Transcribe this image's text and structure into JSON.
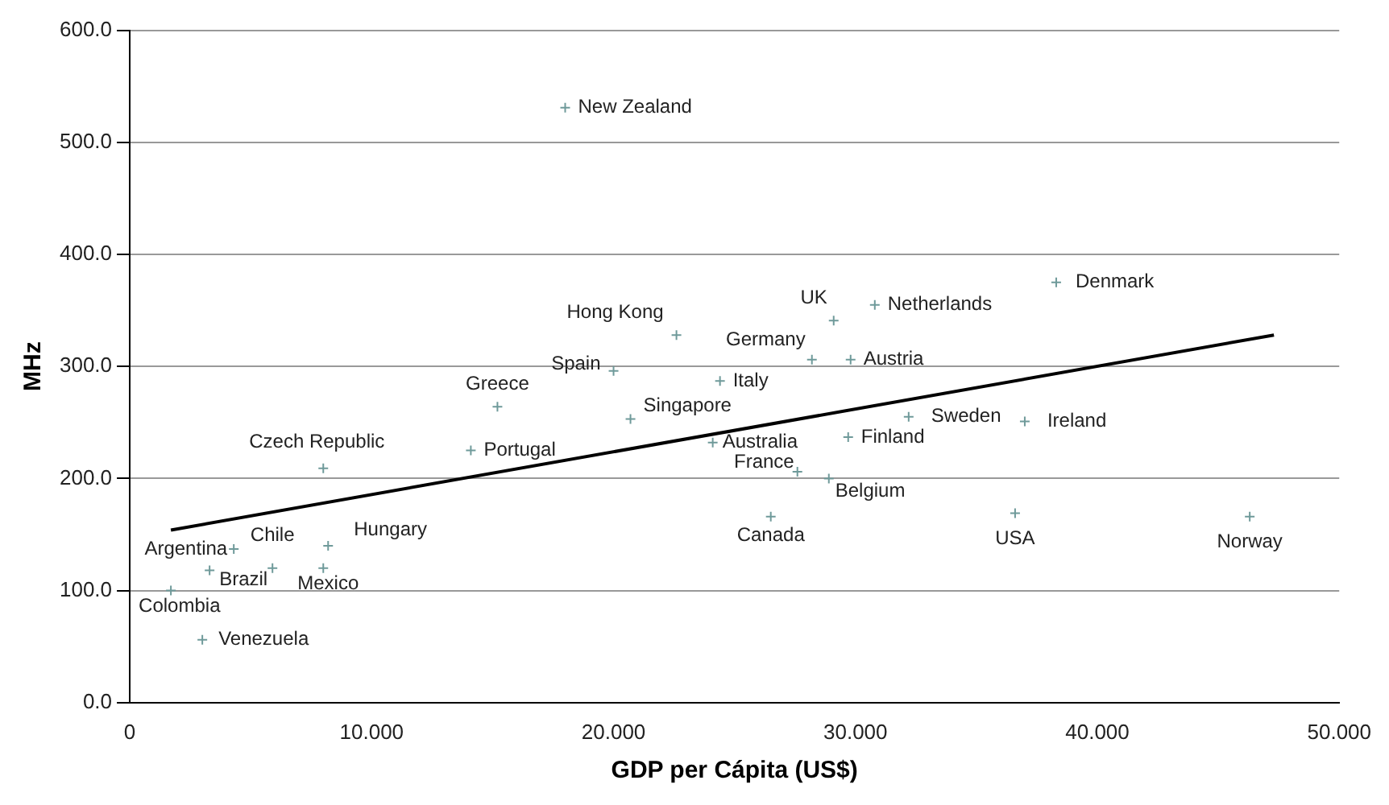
{
  "chart_data": {
    "type": "scatter",
    "xlabel": "GDP per Cápita (US$)",
    "ylabel": "MHz",
    "xlim": [
      0,
      50
    ],
    "xticks": [
      {
        "value": 0,
        "label": "0"
      },
      {
        "value": 10,
        "label": "10.000"
      },
      {
        "value": 20,
        "label": "20.000"
      },
      {
        "value": 30,
        "label": "30.000"
      },
      {
        "value": 40,
        "label": "40.000"
      },
      {
        "value": 50,
        "label": "50.000"
      }
    ],
    "ylim": [
      0,
      600
    ],
    "yticks": [
      {
        "value": 0,
        "label": "0.0"
      },
      {
        "value": 100,
        "label": "100.0"
      },
      {
        "value": 200,
        "label": "200.0"
      },
      {
        "value": 300,
        "label": "300.0"
      },
      {
        "value": 400,
        "label": "400.0"
      },
      {
        "value": 500,
        "label": "500.0"
      },
      {
        "value": 600,
        "label": "600.0"
      }
    ],
    "grid": "y",
    "marker": "cross",
    "series": [
      {
        "color": "#6f9a9a",
        "x": [
          18.0,
          22.6,
          20.0,
          15.2,
          8.0,
          14.1,
          20.7,
          24.4,
          24.1,
          28.2,
          29.1,
          29.8,
          30.8,
          38.3,
          29.7,
          32.2,
          37.0,
          27.6,
          28.9,
          26.5,
          36.6,
          46.3,
          4.3,
          5.9,
          3.3,
          8.0,
          8.2,
          1.7,
          3.0
        ],
        "values": [
          531,
          328,
          296,
          264,
          209,
          225,
          253,
          287,
          232,
          306,
          341,
          306,
          355,
          375,
          237,
          255,
          251,
          206,
          200,
          166,
          169,
          166,
          137,
          120,
          118,
          120,
          140,
          100,
          56
        ]
      },
      {
        "type": "line",
        "color": "#000000",
        "marker": "none",
        "x": [
          1.7,
          47.3
        ],
        "values": [
          154,
          328
        ]
      }
    ],
    "annotations": [
      {
        "text": "New Zealand",
        "x": 18.0,
        "y": 531
      },
      {
        "text": "Hong Kong",
        "x": 22.6,
        "y": 328
      },
      {
        "text": "Spain",
        "x": 20.0,
        "y": 296
      },
      {
        "text": "Greece",
        "x": 15.2,
        "y": 264
      },
      {
        "text": "Czech Republic",
        "x": 8.0,
        "y": 209
      },
      {
        "text": "Portugal",
        "x": 14.1,
        "y": 225
      },
      {
        "text": "Singapore",
        "x": 20.7,
        "y": 253
      },
      {
        "text": "Italy",
        "x": 24.4,
        "y": 287
      },
      {
        "text": "Australia",
        "x": 24.1,
        "y": 232
      },
      {
        "text": "Germany",
        "x": 28.2,
        "y": 306
      },
      {
        "text": "UK",
        "x": 29.1,
        "y": 341
      },
      {
        "text": "Austria",
        "x": 29.8,
        "y": 306
      },
      {
        "text": "Netherlands",
        "x": 30.8,
        "y": 355
      },
      {
        "text": "Denmark",
        "x": 38.3,
        "y": 375
      },
      {
        "text": "Finland",
        "x": 29.7,
        "y": 237
      },
      {
        "text": "Sweden",
        "x": 32.2,
        "y": 255
      },
      {
        "text": "Ireland",
        "x": 37.0,
        "y": 251
      },
      {
        "text": "France",
        "x": 27.6,
        "y": 206
      },
      {
        "text": "Belgium",
        "x": 28.9,
        "y": 200
      },
      {
        "text": "Canada",
        "x": 26.5,
        "y": 166
      },
      {
        "text": "USA",
        "x": 36.6,
        "y": 169
      },
      {
        "text": "Norway",
        "x": 46.3,
        "y": 166
      },
      {
        "text": "Argentina",
        "x": 4.3,
        "y": 137
      },
      {
        "text": "Chile",
        "x": 5.9,
        "y": 120
      },
      {
        "text": "Brazil",
        "x": 3.3,
        "y": 118
      },
      {
        "text": "Mexico",
        "x": 8.0,
        "y": 120
      },
      {
        "text": "Hungary",
        "x": 8.2,
        "y": 140
      },
      {
        "text": "Colombia",
        "x": 1.7,
        "y": 100
      },
      {
        "text": "Venezuela",
        "x": 3.0,
        "y": 56
      }
    ]
  }
}
